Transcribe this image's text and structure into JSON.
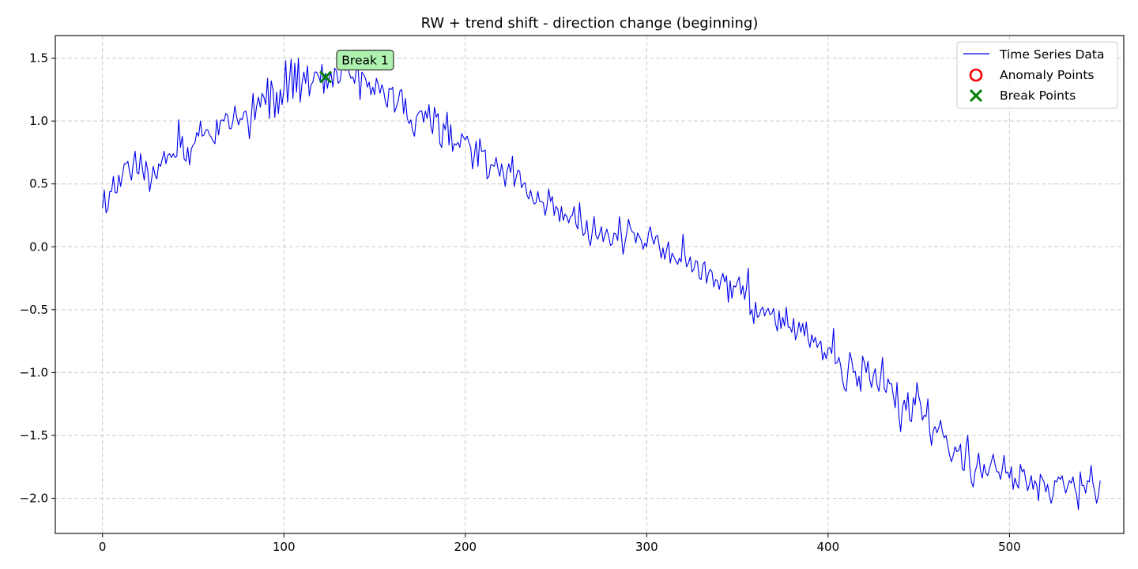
{
  "chart_data": {
    "type": "line",
    "title": "RW + trend shift - direction change (beginning)",
    "xlabel": "",
    "ylabel": "",
    "xlim": [
      -26,
      563
    ],
    "ylim": [
      -2.28,
      1.68
    ],
    "xticks": [
      0,
      100,
      200,
      300,
      400,
      500
    ],
    "yticks": [
      -2.0,
      -1.5,
      -1.0,
      -0.5,
      0.0,
      0.5,
      1.0,
      1.5
    ],
    "xtick_labels": [
      "0",
      "100",
      "200",
      "300",
      "400",
      "500"
    ],
    "ytick_labels": [
      "−2.0",
      "−1.5",
      "−1.0",
      "−0.5",
      "0.0",
      "0.5",
      "1.0",
      "1.5"
    ],
    "grid": true,
    "legend_position": "top-right",
    "series": [
      {
        "name": "Time Series Data",
        "color": "#0000ee",
        "x_start": 0,
        "x_step": 1,
        "values": [
          0.31,
          0.45,
          0.27,
          0.3,
          0.44,
          0.44,
          0.56,
          0.43,
          0.43,
          0.57,
          0.48,
          0.57,
          0.66,
          0.66,
          0.68,
          0.59,
          0.53,
          0.67,
          0.76,
          0.59,
          0.58,
          0.74,
          0.62,
          0.53,
          0.68,
          0.6,
          0.44,
          0.53,
          0.64,
          0.57,
          0.54,
          0.66,
          0.64,
          0.7,
          0.76,
          0.66,
          0.73,
          0.74,
          0.71,
          0.74,
          0.71,
          0.72,
          1.01,
          0.79,
          0.88,
          0.7,
          0.68,
          0.79,
          0.65,
          0.78,
          0.81,
          0.83,
          0.91,
          0.88,
          1.0,
          0.88,
          0.89,
          0.93,
          0.93,
          0.89,
          0.87,
          0.84,
          0.82,
          1.01,
          0.89,
          1.0,
          1.01,
          1.0,
          1.06,
          1.05,
          0.94,
          0.94,
          1.01,
          1.12,
          1.03,
          0.97,
          1.02,
          1.01,
          1.07,
          1.08,
          1.01,
          0.86,
          1.03,
          1.22,
          1.01,
          1.12,
          1.19,
          1.11,
          1.22,
          1.19,
          1.13,
          1.34,
          1.02,
          1.32,
          1.25,
          1.03,
          1.23,
          1.06,
          1.25,
          1.13,
          1.25,
          1.48,
          1.15,
          1.32,
          1.49,
          1.18,
          1.46,
          1.23,
          1.5,
          1.15,
          1.3,
          1.39,
          1.3,
          1.44,
          1.2,
          1.29,
          1.31,
          1.39,
          1.39,
          1.36,
          1.32,
          1.45,
          1.22,
          1.38,
          1.26,
          1.35,
          1.38,
          1.27,
          1.42,
          1.4,
          1.3,
          1.32,
          1.43,
          1.45,
          1.4,
          1.44,
          1.38,
          1.34,
          1.35,
          1.3,
          1.42,
          1.4,
          1.17,
          1.39,
          1.37,
          1.34,
          1.27,
          1.31,
          1.21,
          1.27,
          1.21,
          1.34,
          1.29,
          1.22,
          1.29,
          1.24,
          1.15,
          1.11,
          1.26,
          1.25,
          1.27,
          1.07,
          1.11,
          1.16,
          1.24,
          1.25,
          1.06,
          1.18,
          1.02,
          0.98,
          1.01,
          0.92,
          0.88,
          1.03,
          1.06,
          1.08,
          1.08,
          0.99,
          1.08,
          1.02,
          1.13,
          0.96,
          0.9,
          1.11,
          1.03,
          1.06,
          0.82,
          0.79,
          0.98,
          0.93,
          1.07,
          0.81,
          0.97,
          0.76,
          0.82,
          0.81,
          0.83,
          0.79,
          0.9,
          0.87,
          0.85,
          0.88,
          0.83,
          0.79,
          0.62,
          0.73,
          0.84,
          0.64,
          0.86,
          0.76,
          0.76,
          0.77,
          0.54,
          0.56,
          0.65,
          0.65,
          0.64,
          0.71,
          0.62,
          0.56,
          0.66,
          0.58,
          0.48,
          0.6,
          0.66,
          0.59,
          0.72,
          0.48,
          0.55,
          0.61,
          0.6,
          0.47,
          0.5,
          0.51,
          0.41,
          0.38,
          0.45,
          0.38,
          0.34,
          0.35,
          0.44,
          0.36,
          0.36,
          0.35,
          0.25,
          0.32,
          0.46,
          0.36,
          0.4,
          0.25,
          0.32,
          0.3,
          0.2,
          0.32,
          0.21,
          0.26,
          0.24,
          0.19,
          0.24,
          0.25,
          0.32,
          0.18,
          0.14,
          0.35,
          0.18,
          0.09,
          0.11,
          0.21,
          0.06,
          0.01,
          0.12,
          0.24,
          0.09,
          0.06,
          0.1,
          0.16,
          0.04,
          0.09,
          0.14,
          0.09,
          0.01,
          0.02,
          0.11,
          0.1,
          0.05,
          0.24,
          0.1,
          -0.06,
          0.03,
          0.11,
          0.22,
          0.15,
          0.12,
          0.11,
          0.03,
          0.11,
          0.08,
          0.05,
          -0.02,
          0.03,
          0.0,
          0.11,
          0.16,
          0.07,
          0.02,
          0.08,
          0.09,
          0.0,
          -0.09,
          -0.01,
          -0.1,
          -0.02,
          0.04,
          -0.13,
          -0.05,
          -0.08,
          -0.11,
          -0.14,
          -0.09,
          -0.12,
          0.1,
          -0.06,
          -0.16,
          -0.13,
          -0.08,
          -0.2,
          -0.18,
          -0.11,
          -0.12,
          -0.25,
          -0.26,
          -0.14,
          -0.12,
          -0.29,
          -0.21,
          -0.18,
          -0.2,
          -0.32,
          -0.26,
          -0.27,
          -0.34,
          -0.26,
          -0.21,
          -0.28,
          -0.23,
          -0.44,
          -0.27,
          -0.41,
          -0.31,
          -0.32,
          -0.28,
          -0.24,
          -0.38,
          -0.31,
          -0.42,
          -0.33,
          -0.17,
          -0.54,
          -0.5,
          -0.61,
          -0.44,
          -0.56,
          -0.55,
          -0.5,
          -0.48,
          -0.55,
          -0.51,
          -0.49,
          -0.54,
          -0.53,
          -0.49,
          -0.61,
          -0.67,
          -0.51,
          -0.65,
          -0.56,
          -0.63,
          -0.48,
          -0.64,
          -0.64,
          -0.68,
          -0.57,
          -0.74,
          -0.69,
          -0.6,
          -0.68,
          -0.61,
          -0.71,
          -0.6,
          -0.74,
          -0.8,
          -0.7,
          -0.76,
          -0.72,
          -0.8,
          -0.77,
          -0.75,
          -0.9,
          -0.84,
          -0.89,
          -0.81,
          -0.8,
          -0.85,
          -0.65,
          -0.93,
          -0.92,
          -0.88,
          -0.95,
          -1.07,
          -1.13,
          -1.15,
          -0.98,
          -0.84,
          -0.9,
          -1.0,
          -0.99,
          -1.11,
          -1.03,
          -1.15,
          -0.87,
          -0.92,
          -1.0,
          -0.91,
          -1.06,
          -1.12,
          -1.02,
          -0.97,
          -1.1,
          -1.15,
          -1.03,
          -0.88,
          -1.13,
          -1.16,
          -1.05,
          -1.09,
          -1.09,
          -1.19,
          -1.28,
          -1.08,
          -1.34,
          -1.47,
          -1.28,
          -1.22,
          -1.3,
          -1.16,
          -1.38,
          -1.39,
          -1.2,
          -1.26,
          -1.08,
          -1.19,
          -1.25,
          -1.38,
          -1.34,
          -1.35,
          -1.21,
          -1.47,
          -1.58,
          -1.46,
          -1.43,
          -1.48,
          -1.44,
          -1.38,
          -1.47,
          -1.52,
          -1.5,
          -1.58,
          -1.66,
          -1.71,
          -1.66,
          -1.59,
          -1.63,
          -1.62,
          -1.57,
          -1.77,
          -1.78,
          -1.6,
          -1.5,
          -1.73,
          -1.87,
          -1.91,
          -1.79,
          -1.74,
          -1.64,
          -1.78,
          -1.84,
          -1.73,
          -1.8,
          -1.82,
          -1.76,
          -1.71,
          -1.65,
          -1.73,
          -1.79,
          -1.79,
          -1.85,
          -1.77,
          -1.66,
          -1.8,
          -1.79,
          -1.84,
          -1.75,
          -1.93,
          -1.84,
          -1.89,
          -1.92,
          -1.73,
          -1.79,
          -1.77,
          -1.86,
          -1.94,
          -1.89,
          -1.82,
          -1.93,
          -1.86,
          -1.89,
          -2.02,
          -1.81,
          -1.84,
          -1.87,
          -1.95,
          -1.89,
          -1.98,
          -2.04,
          -1.98,
          -1.86,
          -1.87,
          -1.83,
          -1.85,
          -1.82,
          -1.9,
          -1.96,
          -1.91,
          -1.86,
          -1.88,
          -1.83,
          -1.92,
          -1.97,
          -2.09,
          -1.79,
          -1.9,
          -1.9,
          -1.96,
          -1.86,
          -1.87,
          -1.74,
          -1.88,
          -1.95,
          -2.04,
          -1.98,
          -1.86
        ]
      }
    ],
    "anomaly_points": [],
    "break_points": [
      {
        "x": 123,
        "y": 1.35,
        "label": "Break 1"
      }
    ],
    "legend": {
      "series_label": "Time Series Data",
      "anomaly_label": "Anomaly Points",
      "break_label": "Break Points"
    },
    "colors": {
      "line": "#0000ee",
      "anomaly": "#ff0000",
      "break": "#008000",
      "annotation_fill": "#aef0ae",
      "grid": "#cccccc"
    }
  }
}
